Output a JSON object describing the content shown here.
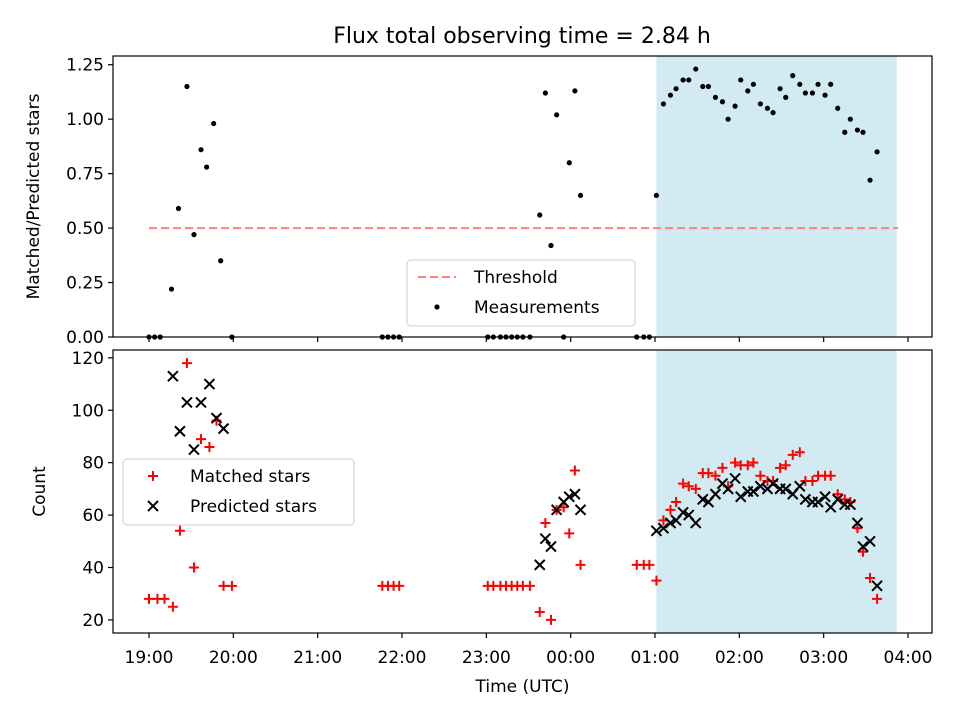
{
  "chart_data": [
    {
      "type": "scatter",
      "title": "Flux total observing time = 2.84 h",
      "ylabel": "Matched/Predicted stars",
      "xlabel": "",
      "ylim": [
        0,
        1.29
      ],
      "yticks": [
        0.0,
        0.25,
        0.5,
        0.75,
        1.0,
        1.25
      ],
      "ytick_labels": [
        "0.00",
        "0.25",
        "0.50",
        "0.75",
        "1.00",
        "1.25"
      ],
      "shaded_region": {
        "x_start": "01:01",
        "x_end": "03:52",
        "color": "#add8e6"
      },
      "threshold": {
        "name": "Threshold",
        "value": 0.5,
        "x_start": "19:00",
        "x_end": "03:53",
        "color": "#ff7f7f"
      },
      "legend": {
        "position": "lower-center",
        "entries": [
          "Threshold",
          "Measurements"
        ]
      },
      "series": [
        {
          "name": "Measurements",
          "color": "#000000",
          "marker": "dot",
          "points": [
            [
              "19:00",
              0
            ],
            [
              "19:04",
              0
            ],
            [
              "19:08",
              0
            ],
            [
              "19:16",
              0.22
            ],
            [
              "19:21",
              0.59
            ],
            [
              "19:27",
              1.15
            ],
            [
              "19:32",
              0.47
            ],
            [
              "19:37",
              0.86
            ],
            [
              "19:41",
              0.78
            ],
            [
              "19:46",
              0.98
            ],
            [
              "19:51",
              0.35
            ],
            [
              "19:59",
              0
            ],
            [
              "21:46",
              0
            ],
            [
              "21:50",
              0
            ],
            [
              "21:54",
              0
            ],
            [
              "21:58",
              0
            ],
            [
              "23:01",
              0
            ],
            [
              "23:05",
              0
            ],
            [
              "23:10",
              0
            ],
            [
              "23:14",
              0
            ],
            [
              "23:18",
              0
            ],
            [
              "23:22",
              0
            ],
            [
              "23:26",
              0
            ],
            [
              "23:31",
              0
            ],
            [
              "23:38",
              0.56
            ],
            [
              "23:42",
              1.12
            ],
            [
              "23:46",
              0.42
            ],
            [
              "23:50",
              1.02
            ],
            [
              "23:55",
              0
            ],
            [
              "23:59",
              0.8
            ],
            [
              "00:03",
              1.13
            ],
            [
              "00:07",
              0.65
            ],
            [
              "00:47",
              0
            ],
            [
              "00:52",
              0
            ],
            [
              "00:56",
              0
            ],
            [
              "01:01",
              0.65
            ],
            [
              "01:06",
              1.07
            ],
            [
              "01:11",
              1.11
            ],
            [
              "01:15",
              1.14
            ],
            [
              "01:20",
              1.18
            ],
            [
              "01:24",
              1.18
            ],
            [
              "01:29",
              1.23
            ],
            [
              "01:34",
              1.15
            ],
            [
              "01:38",
              1.15
            ],
            [
              "01:43",
              1.1
            ],
            [
              "01:48",
              1.08
            ],
            [
              "01:52",
              1.0
            ],
            [
              "01:57",
              1.06
            ],
            [
              "02:01",
              1.18
            ],
            [
              "02:06",
              1.13
            ],
            [
              "02:10",
              1.16
            ],
            [
              "02:15",
              1.07
            ],
            [
              "02:20",
              1.05
            ],
            [
              "02:24",
              1.03
            ],
            [
              "02:29",
              1.14
            ],
            [
              "02:33",
              1.1
            ],
            [
              "02:38",
              1.2
            ],
            [
              "02:43",
              1.16
            ],
            [
              "02:47",
              1.12
            ],
            [
              "02:52",
              1.12
            ],
            [
              "02:56",
              1.16
            ],
            [
              "03:01",
              1.11
            ],
            [
              "03:05",
              1.16
            ],
            [
              "03:10",
              1.05
            ],
            [
              "03:15",
              0.94
            ],
            [
              "03:19",
              1.0
            ],
            [
              "03:24",
              0.95
            ],
            [
              "03:28",
              0.94
            ],
            [
              "03:33",
              0.72
            ],
            [
              "03:38",
              0.85
            ]
          ]
        }
      ]
    },
    {
      "type": "scatter",
      "title": "",
      "ylabel": "Count",
      "xlabel": "Time (UTC)",
      "ylim": [
        15,
        123
      ],
      "yticks": [
        20,
        40,
        60,
        80,
        100,
        120
      ],
      "ytick_labels": [
        "20",
        "40",
        "60",
        "80",
        "100",
        "120"
      ],
      "xticks": [
        "19:00",
        "20:00",
        "21:00",
        "22:00",
        "23:00",
        "00:00",
        "01:00",
        "02:00",
        "03:00",
        "04:00"
      ],
      "shaded_region": {
        "x_start": "01:01",
        "x_end": "03:52",
        "color": "#add8e6"
      },
      "legend": {
        "position": "center-left",
        "entries": [
          "Matched stars",
          "Predicted stars"
        ]
      },
      "series": [
        {
          "name": "Matched stars",
          "color": "#ff0000",
          "marker": "plus",
          "points": [
            [
              "19:00",
              28
            ],
            [
              "19:06",
              28
            ],
            [
              "19:11",
              28
            ],
            [
              "19:17",
              25
            ],
            [
              "19:22",
              54
            ],
            [
              "19:27",
              118
            ],
            [
              "19:32",
              40
            ],
            [
              "19:37",
              89
            ],
            [
              "19:43",
              86
            ],
            [
              "19:48",
              96
            ],
            [
              "19:53",
              33
            ],
            [
              "19:59",
              33
            ],
            [
              "21:46",
              33
            ],
            [
              "21:50",
              33
            ],
            [
              "21:54",
              33
            ],
            [
              "21:58",
              33
            ],
            [
              "23:01",
              33
            ],
            [
              "23:05",
              33
            ],
            [
              "23:10",
              33
            ],
            [
              "23:14",
              33
            ],
            [
              "23:18",
              33
            ],
            [
              "23:22",
              33
            ],
            [
              "23:26",
              33
            ],
            [
              "23:31",
              33
            ],
            [
              "23:38",
              23
            ],
            [
              "23:42",
              57
            ],
            [
              "23:46",
              20
            ],
            [
              "23:50",
              62
            ],
            [
              "23:55",
              63
            ],
            [
              "23:59",
              53
            ],
            [
              "00:03",
              77
            ],
            [
              "00:07",
              41
            ],
            [
              "00:47",
              41
            ],
            [
              "00:52",
              41
            ],
            [
              "00:56",
              41
            ],
            [
              "01:01",
              35
            ],
            [
              "01:06",
              58
            ],
            [
              "01:11",
              62
            ],
            [
              "01:15",
              65
            ],
            [
              "01:20",
              72
            ],
            [
              "01:24",
              71
            ],
            [
              "01:29",
              70
            ],
            [
              "01:34",
              76
            ],
            [
              "01:38",
              76
            ],
            [
              "01:43",
              75
            ],
            [
              "01:48",
              78
            ],
            [
              "01:52",
              71
            ],
            [
              "01:57",
              80
            ],
            [
              "02:01",
              79
            ],
            [
              "02:06",
              79
            ],
            [
              "02:10",
              80
            ],
            [
              "02:15",
              75
            ],
            [
              "02:20",
              73
            ],
            [
              "02:24",
              73
            ],
            [
              "02:29",
              78
            ],
            [
              "02:33",
              79
            ],
            [
              "02:38",
              83
            ],
            [
              "02:43",
              84
            ],
            [
              "02:47",
              73
            ],
            [
              "02:52",
              73
            ],
            [
              "02:56",
              75
            ],
            [
              "03:01",
              75
            ],
            [
              "03:05",
              75
            ],
            [
              "03:10",
              68
            ],
            [
              "03:15",
              66
            ],
            [
              "03:19",
              65
            ],
            [
              "03:24",
              55
            ],
            [
              "03:28",
              46
            ],
            [
              "03:33",
              36
            ],
            [
              "03:38",
              28
            ]
          ]
        },
        {
          "name": "Predicted stars",
          "color": "#000000",
          "marker": "x",
          "points": [
            [
              "19:17",
              113
            ],
            [
              "19:22",
              92
            ],
            [
              "19:27",
              103
            ],
            [
              "19:32",
              85
            ],
            [
              "19:37",
              103
            ],
            [
              "19:43",
              110
            ],
            [
              "19:48",
              97
            ],
            [
              "19:53",
              93
            ],
            [
              "23:38",
              41
            ],
            [
              "23:42",
              51
            ],
            [
              "23:46",
              48
            ],
            [
              "23:50",
              62
            ],
            [
              "23:55",
              65
            ],
            [
              "23:59",
              67
            ],
            [
              "00:03",
              68
            ],
            [
              "00:07",
              62
            ],
            [
              "01:01",
              54
            ],
            [
              "01:06",
              55
            ],
            [
              "01:11",
              57
            ],
            [
              "01:15",
              58
            ],
            [
              "01:20",
              61
            ],
            [
              "01:24",
              60
            ],
            [
              "01:29",
              57
            ],
            [
              "01:34",
              66
            ],
            [
              "01:38",
              65
            ],
            [
              "01:43",
              68
            ],
            [
              "01:48",
              72
            ],
            [
              "01:52",
              70
            ],
            [
              "01:57",
              74
            ],
            [
              "02:01",
              67
            ],
            [
              "02:06",
              69
            ],
            [
              "02:10",
              69
            ],
            [
              "02:15",
              71
            ],
            [
              "02:20",
              70
            ],
            [
              "02:24",
              72
            ],
            [
              "02:29",
              70
            ],
            [
              "02:33",
              70
            ],
            [
              "02:38",
              68
            ],
            [
              "02:43",
              71
            ],
            [
              "02:47",
              66
            ],
            [
              "02:52",
              65
            ],
            [
              "02:56",
              65
            ],
            [
              "03:01",
              67
            ],
            [
              "03:05",
              63
            ],
            [
              "03:10",
              66
            ],
            [
              "03:15",
              64
            ],
            [
              "03:19",
              64
            ],
            [
              "03:24",
              57
            ],
            [
              "03:28",
              48
            ],
            [
              "03:33",
              50
            ],
            [
              "03:38",
              33
            ]
          ]
        }
      ]
    }
  ]
}
